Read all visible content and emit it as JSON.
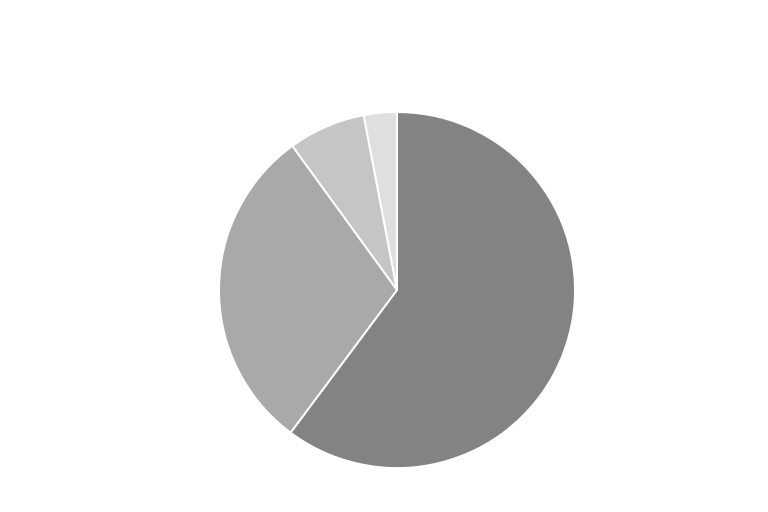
{
  "chart_data": {
    "type": "pie",
    "title": "",
    "legend": "none",
    "start_angle_deg": 0,
    "direction": "clockwise",
    "slices": [
      {
        "value": 60.2,
        "color": "#838383"
      },
      {
        "value": 29.8,
        "color": "#a9a9a9"
      },
      {
        "value": 7.0,
        "color": "#c5c5c5"
      },
      {
        "value": 3.0,
        "color": "#dfdfdf"
      }
    ],
    "stroke_color": "#ffffff"
  }
}
